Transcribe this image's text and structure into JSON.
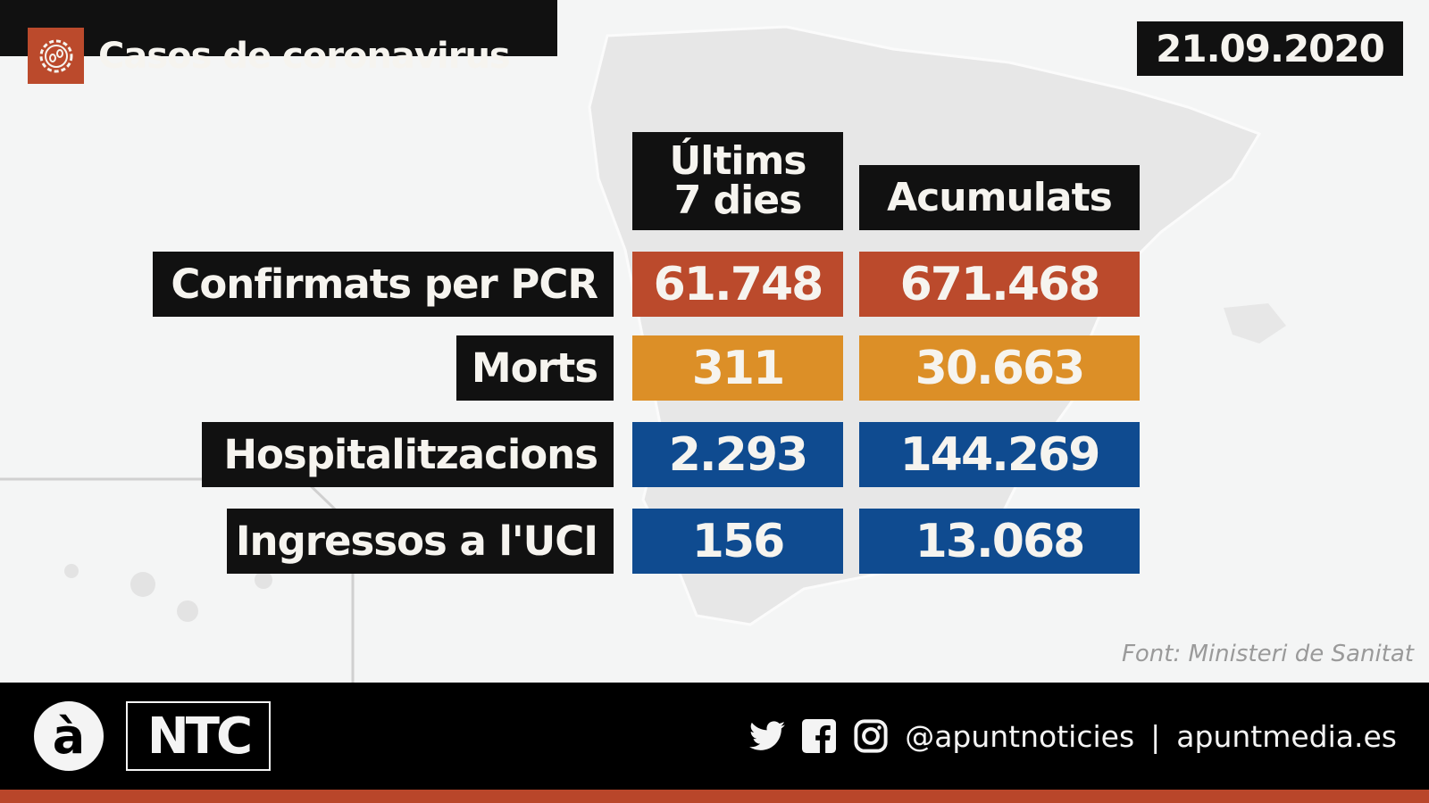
{
  "header": {
    "title": "Casos de coronavirus",
    "date": "21.09.2020",
    "icon": "virus-icon"
  },
  "columns": {
    "last7": "Últims 7 dies",
    "cumulative": "Acumulats"
  },
  "rows": [
    {
      "label": "Confirmats per PCR",
      "last7": "61.748",
      "cumulative": "671.468",
      "color": "#bb4a2c"
    },
    {
      "label": "Morts",
      "last7": "311",
      "cumulative": "30.663",
      "color": "#dc8f27"
    },
    {
      "label": "Hospitalitzacions",
      "last7": "2.293",
      "cumulative": "144.269",
      "color": "#0f4b90"
    },
    {
      "label": "Ingressos a l'UCI",
      "last7": "156",
      "cumulative": "13.068",
      "color": "#0f4b90"
    }
  ],
  "source": "Font: Ministeri de Sanitat",
  "footer": {
    "logo_a": "à",
    "logo_ntc": "NTC",
    "handle": "@apuntnoticies",
    "separator": "|",
    "website": "apuntmedia.es",
    "icons": [
      "twitter-icon",
      "facebook-icon",
      "instagram-icon"
    ]
  }
}
